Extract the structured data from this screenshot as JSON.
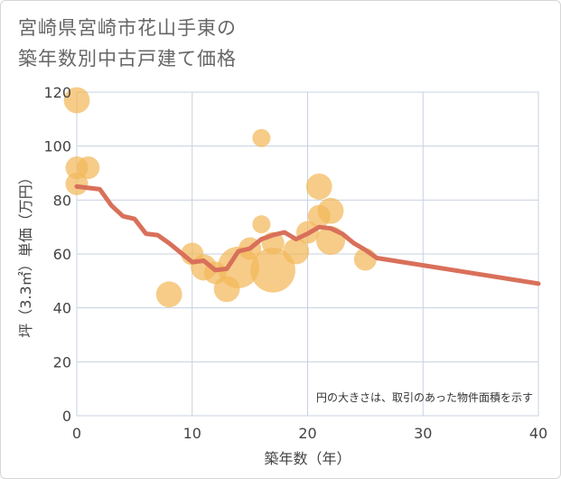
{
  "title": {
    "line1": "宮崎県宮崎市花山手東の",
    "line2": "築年数別中古戸建て価格"
  },
  "colors": {
    "bubble": "#f2b85a",
    "line": "#d9705a",
    "grid": "#c8d0e0",
    "text": "#444444"
  },
  "chart_data": {
    "type": "scatter",
    "title": "宮崎県宮崎市花山手東の築年数別中古戸建て価格",
    "xlabel": "築年数（年）",
    "ylabel": "坪（3.3㎡）単価（万円）",
    "xlim": [
      0,
      40
    ],
    "ylim": [
      0,
      120
    ],
    "xticks": [
      0,
      10,
      20,
      30,
      40
    ],
    "yticks": [
      0,
      20,
      40,
      60,
      80,
      100,
      120
    ],
    "grid": true,
    "annotation": "円の大きさは、取引のあった物件面積を示す",
    "bubbles": [
      {
        "x": 0,
        "y": 117,
        "size": 3
      },
      {
        "x": 0,
        "y": 92,
        "size": 2
      },
      {
        "x": 0,
        "y": 86,
        "size": 2
      },
      {
        "x": 1,
        "y": 92,
        "size": 2
      },
      {
        "x": 8,
        "y": 45,
        "size": 3
      },
      {
        "x": 10,
        "y": 60,
        "size": 2
      },
      {
        "x": 11,
        "y": 55,
        "size": 3
      },
      {
        "x": 12,
        "y": 53,
        "size": 2
      },
      {
        "x": 13,
        "y": 47,
        "size": 3
      },
      {
        "x": 14,
        "y": 55,
        "size": 10
      },
      {
        "x": 15,
        "y": 62,
        "size": 2
      },
      {
        "x": 16,
        "y": 103,
        "size": 1
      },
      {
        "x": 16,
        "y": 71,
        "size": 1
      },
      {
        "x": 17,
        "y": 64,
        "size": 2
      },
      {
        "x": 17,
        "y": 54,
        "size": 12
      },
      {
        "x": 19,
        "y": 61,
        "size": 3
      },
      {
        "x": 20,
        "y": 68,
        "size": 2
      },
      {
        "x": 21,
        "y": 85,
        "size": 3
      },
      {
        "x": 21,
        "y": 74,
        "size": 2
      },
      {
        "x": 22,
        "y": 76,
        "size": 3
      },
      {
        "x": 22,
        "y": 65,
        "size": 4
      },
      {
        "x": 25,
        "y": 58,
        "size": 2
      }
    ],
    "series": [
      {
        "name": "trend",
        "x": [
          0,
          1,
          2,
          3,
          4,
          5,
          6,
          7,
          8,
          9,
          10,
          11,
          12,
          13,
          14,
          15,
          16,
          17,
          18,
          19,
          20,
          21,
          22,
          23,
          24,
          25,
          26,
          40
        ],
        "values": [
          85,
          84.5,
          84,
          78,
          74,
          73,
          67.5,
          67,
          64,
          60.5,
          57,
          57.5,
          54,
          54.5,
          61,
          62,
          65.5,
          67,
          68,
          65.5,
          67.5,
          70,
          69.5,
          67.5,
          64,
          61.5,
          58.5,
          49
        ]
      }
    ]
  }
}
